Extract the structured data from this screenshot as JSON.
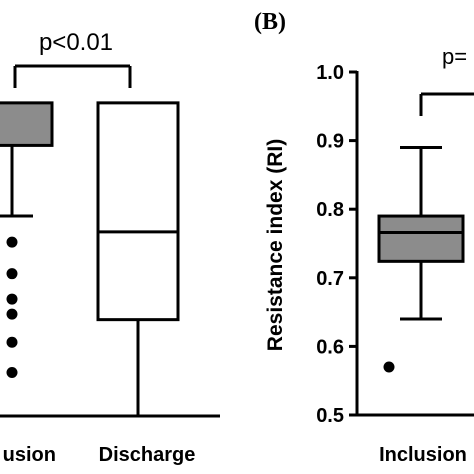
{
  "chart_data": [
    {
      "panel_label": "",
      "type": "boxplot",
      "categories": [
        "usion",
        "Discharge"
      ],
      "y_axis_visible": false,
      "boxes": [
        {
          "name": "usion",
          "whisker_low": 0.79,
          "q1": 0.893,
          "median": null,
          "q3": 0.955,
          "whisker_high": null,
          "fill": "#8c8c8c",
          "outliers": [
            0.752,
            0.706,
            0.669,
            0.647,
            0.606,
            0.562
          ],
          "partial": true
        },
        {
          "name": "Discharge",
          "whisker_low": 0.5,
          "q1": 0.639,
          "median": 0.767,
          "q3": 0.955,
          "whisker_high": null,
          "fill": "#ffffff",
          "outliers": []
        }
      ],
      "annotation": "p<0.01"
    },
    {
      "panel_label": "(B)",
      "type": "boxplot",
      "ylabel": "Resistance index (RI)",
      "ylim": [
        0.5,
        1.0
      ],
      "yticks": [
        "0.5",
        "0.6",
        "0.7",
        "0.8",
        "0.9",
        "1.0"
      ],
      "categories": [
        "Inclusion"
      ],
      "boxes": [
        {
          "name": "Inclusion",
          "whisker_low": 0.64,
          "q1": 0.724,
          "median": 0.766,
          "q3": 0.79,
          "whisker_high": 0.89,
          "fill": "#8c8c8c",
          "outliers": [
            0.57
          ]
        }
      ],
      "annotation": "p="
    }
  ]
}
